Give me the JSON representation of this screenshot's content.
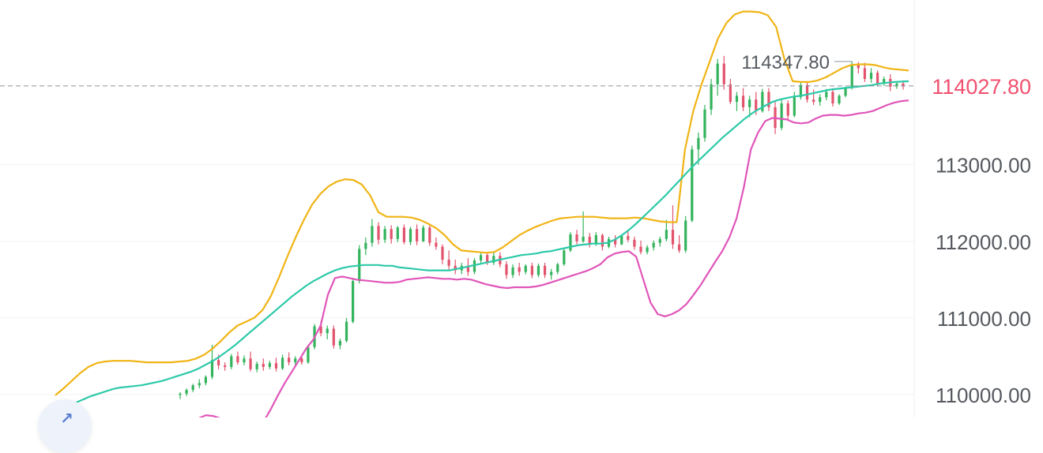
{
  "chart_data": {
    "type": "candlestick",
    "y_ticks": [
      "113000.00",
      "112000.00",
      "111000.00",
      "110000.00"
    ],
    "y_tick_values": [
      113000,
      112000,
      111000,
      110000
    ],
    "ylim": [
      109700,
      115150
    ],
    "current_price_label": "114027.80",
    "current_price": 114027.8,
    "high_label": "114347.80",
    "high_value": 114347.8,
    "candles": [
      [
        110000,
        110030,
        109940,
        110010
      ],
      [
        110010,
        110080,
        109980,
        110060
      ],
      [
        110060,
        110140,
        110030,
        110120
      ],
      [
        110120,
        110200,
        110080,
        110150
      ],
      [
        110150,
        110250,
        110120,
        110230
      ],
      [
        110230,
        110650,
        110200,
        110450
      ],
      [
        110450,
        110520,
        110330,
        110380
      ],
      [
        110380,
        110420,
        110310,
        110360
      ],
      [
        110360,
        110530,
        110330,
        110500
      ],
      [
        110500,
        110560,
        110390,
        110420
      ],
      [
        110420,
        110510,
        110380,
        110470
      ],
      [
        110470,
        110560,
        110300,
        110330
      ],
      [
        110330,
        110430,
        110290,
        110400
      ],
      [
        110400,
        110470,
        110310,
        110360
      ],
      [
        110360,
        110440,
        110330,
        110410
      ],
      [
        110410,
        110480,
        110300,
        110340
      ],
      [
        110340,
        110520,
        110320,
        110480
      ],
      [
        110480,
        110550,
        110380,
        110420
      ],
      [
        110420,
        110500,
        110370,
        110470
      ],
      [
        110470,
        110520,
        110390,
        110420
      ],
      [
        110420,
        110650,
        110400,
        110620
      ],
      [
        110620,
        110920,
        110590,
        110890
      ],
      [
        110890,
        110960,
        110760,
        110800
      ],
      [
        110800,
        110900,
        110720,
        110860
      ],
      [
        110860,
        110900,
        110600,
        110640
      ],
      [
        110640,
        110730,
        110590,
        110700
      ],
      [
        110700,
        111000,
        110680,
        110950
      ],
      [
        110950,
        111520,
        110930,
        111480
      ],
      [
        111480,
        111950,
        111450,
        111900
      ],
      [
        111900,
        112050,
        111820,
        111980
      ],
      [
        111980,
        112290,
        111930,
        112200
      ],
      [
        112200,
        112250,
        111960,
        112020
      ],
      [
        112020,
        112200,
        111980,
        112160
      ],
      [
        112160,
        112210,
        111970,
        112030
      ],
      [
        112030,
        112200,
        111990,
        112180
      ],
      [
        112180,
        112220,
        111960,
        111990
      ],
      [
        111990,
        112190,
        111950,
        112160
      ],
      [
        112160,
        112220,
        111950,
        112000
      ],
      [
        112000,
        112210,
        111990,
        112180
      ],
      [
        112180,
        112230,
        111940,
        111980
      ],
      [
        111980,
        112050,
        111890,
        111930
      ],
      [
        111930,
        111960,
        111700,
        111760
      ],
      [
        111760,
        111880,
        111620,
        111680
      ],
      [
        111680,
        111760,
        111570,
        111620
      ],
      [
        111620,
        111720,
        111570,
        111680
      ],
      [
        111680,
        111780,
        111550,
        111600
      ],
      [
        111600,
        111780,
        111570,
        111750
      ],
      [
        111750,
        111860,
        111700,
        111820
      ],
      [
        111820,
        111840,
        111690,
        111720
      ],
      [
        111720,
        111850,
        111690,
        111810
      ],
      [
        111810,
        111860,
        111660,
        111700
      ],
      [
        111700,
        111740,
        111510,
        111560
      ],
      [
        111560,
        111700,
        111520,
        111660
      ],
      [
        111660,
        111720,
        111550,
        111600
      ],
      [
        111600,
        111700,
        111570,
        111680
      ],
      [
        111680,
        111720,
        111520,
        111560
      ],
      [
        111560,
        111710,
        111530,
        111680
      ],
      [
        111680,
        111720,
        111520,
        111560
      ],
      [
        111560,
        111640,
        111500,
        111600
      ],
      [
        111600,
        111720,
        111570,
        111700
      ],
      [
        111700,
        111900,
        111680,
        111880
      ],
      [
        111880,
        112120,
        111860,
        112090
      ],
      [
        112090,
        112150,
        111960,
        112000
      ],
      [
        112000,
        112390,
        111980,
        112060
      ],
      [
        112060,
        112110,
        111920,
        111960
      ],
      [
        111960,
        112120,
        111940,
        112080
      ],
      [
        112080,
        112100,
        111880,
        111930
      ],
      [
        111930,
        112060,
        111910,
        112030
      ],
      [
        112030,
        112080,
        111920,
        111960
      ],
      [
        111960,
        112090,
        111950,
        112070
      ],
      [
        112070,
        112130,
        111990,
        112020
      ],
      [
        112020,
        112060,
        111890,
        111930
      ],
      [
        111930,
        112010,
        111830,
        111860
      ],
      [
        111860,
        111950,
        111830,
        111920
      ],
      [
        111920,
        112010,
        111880,
        111980
      ],
      [
        111980,
        112060,
        111930,
        112030
      ],
      [
        112030,
        112280,
        112000,
        112150
      ],
      [
        112150,
        112470,
        111900,
        111960
      ],
      [
        111960,
        112080,
        111850,
        111880
      ],
      [
        111880,
        112330,
        111850,
        112270
      ],
      [
        112270,
        113250,
        112250,
        113200
      ],
      [
        113200,
        113420,
        113000,
        113350
      ],
      [
        113350,
        113780,
        113300,
        113720
      ],
      [
        113720,
        114120,
        113650,
        114050
      ],
      [
        114050,
        114380,
        113900,
        114320
      ],
      [
        114320,
        114420,
        113980,
        114050
      ],
      [
        114050,
        114120,
        113790,
        113820
      ],
      [
        113820,
        113950,
        113700,
        113900
      ],
      [
        113900,
        114000,
        113700,
        113750
      ],
      [
        113750,
        113900,
        113620,
        113850
      ],
      [
        113850,
        113950,
        113650,
        113700
      ],
      [
        113700,
        113990,
        113680,
        113950
      ],
      [
        113950,
        114000,
        113700,
        113750
      ],
      [
        113750,
        113820,
        113400,
        113480
      ],
      [
        113480,
        113850,
        113450,
        113800
      ],
      [
        113800,
        113840,
        113580,
        113640
      ],
      [
        113640,
        113950,
        113620,
        113880
      ],
      [
        113880,
        114080,
        113850,
        114040
      ],
      [
        114040,
        114080,
        113810,
        113850
      ],
      [
        113850,
        113980,
        113780,
        113820
      ],
      [
        113820,
        113920,
        113770,
        113880
      ],
      [
        113880,
        113990,
        113840,
        113950
      ],
      [
        113950,
        114000,
        113760,
        113800
      ],
      [
        113800,
        113920,
        113780,
        113900
      ],
      [
        113900,
        114020,
        113880,
        114000
      ],
      [
        114000,
        114350,
        113980,
        114300
      ],
      [
        114300,
        114340,
        114190,
        114260
      ],
      [
        114260,
        114330,
        114080,
        114120
      ],
      [
        114120,
        114260,
        114070,
        114200
      ],
      [
        114200,
        114230,
        114020,
        114060
      ],
      [
        114060,
        114150,
        114030,
        114120
      ],
      [
        114120,
        114180,
        113960,
        114020
      ],
      [
        114020,
        114090,
        113990,
        114060
      ],
      [
        114060,
        114100,
        113980,
        114028
      ]
    ],
    "series": [
      {
        "name": "",
        "color": "#f0b415",
        "values": [
          109990,
          110080,
          110180,
          110280,
          110360,
          110410,
          110430,
          110440,
          110440,
          110440,
          110430,
          110420,
          110420,
          110420,
          110420,
          110430,
          110440,
          110470,
          110520,
          110600,
          110700,
          110810,
          110900,
          110950,
          111000,
          111100,
          111280,
          111530,
          111800,
          112050,
          112280,
          112480,
          112620,
          112720,
          112780,
          112810,
          112800,
          112740,
          112600,
          112380,
          112320,
          112320,
          112320,
          112310,
          112280,
          112230,
          112170,
          112080,
          111960,
          111880,
          111870,
          111860,
          111850,
          111860,
          111920,
          112000,
          112080,
          112140,
          112190,
          112230,
          112270,
          112300,
          112310,
          112320,
          112320,
          112320,
          112310,
          112300,
          112300,
          112300,
          112310,
          112300,
          112280,
          112260,
          112250,
          112250,
          113200,
          113700,
          114050,
          114350,
          114650,
          114850,
          114960,
          115000,
          115000,
          114990,
          114950,
          114800,
          114380,
          114090,
          114080,
          114080,
          114100,
          114140,
          114200,
          114260,
          114300,
          114310,
          114310,
          114300,
          114270,
          114250,
          114240,
          114230
        ]
      },
      {
        "name": "",
        "color": "#2cc9a9",
        "values": [
          109780,
          109820,
          109860,
          109900,
          109940,
          109980,
          110010,
          110040,
          110070,
          110090,
          110100,
          110110,
          110120,
          110140,
          110160,
          110180,
          110210,
          110240,
          110270,
          110300,
          110340,
          110390,
          110440,
          110500,
          110570,
          110640,
          110720,
          110800,
          110880,
          110960,
          111040,
          111120,
          111200,
          111280,
          111350,
          111420,
          111480,
          111530,
          111580,
          111620,
          111650,
          111670,
          111680,
          111690,
          111690,
          111690,
          111680,
          111680,
          111660,
          111650,
          111640,
          111630,
          111620,
          111620,
          111620,
          111620,
          111640,
          111660,
          111680,
          111700,
          111720,
          111740,
          111760,
          111780,
          111800,
          111820,
          111830,
          111840,
          111860,
          111870,
          111890,
          111910,
          111930,
          111950,
          111960,
          111970,
          111970,
          111980,
          112020,
          112080,
          112150,
          112230,
          112320,
          112410,
          112500,
          112590,
          112690,
          112790,
          112890,
          112990,
          113080,
          113170,
          113260,
          113350,
          113430,
          113510,
          113590,
          113660,
          113720,
          113770,
          113820,
          113850,
          113870,
          113890,
          113900,
          113920,
          113940,
          113960,
          113980,
          113990,
          114000,
          114010,
          114020,
          114030,
          114040,
          114060,
          114070,
          114080,
          114085,
          114090
        ]
      },
      {
        "name": "",
        "color": "#e055b9",
        "values": [
          109250,
          109240,
          109250,
          109260,
          109280,
          109300,
          109350,
          109400,
          109450,
          109480,
          109500,
          109510,
          109520,
          109520,
          109520,
          109530,
          109540,
          109560,
          109600,
          109650,
          109690,
          109730,
          109720,
          109690,
          109600,
          109540,
          109510,
          109510,
          109540,
          109640,
          109800,
          109980,
          110150,
          110300,
          110450,
          110600,
          110720,
          110900,
          111300,
          111520,
          111540,
          111520,
          111500,
          111490,
          111480,
          111470,
          111460,
          111460,
          111470,
          111500,
          111510,
          111520,
          111530,
          111520,
          111510,
          111510,
          111500,
          111510,
          111500,
          111470,
          111440,
          111420,
          111400,
          111390,
          111400,
          111400,
          111400,
          111410,
          111430,
          111460,
          111490,
          111520,
          111550,
          111580,
          111610,
          111650,
          111700,
          111790,
          111840,
          111860,
          111870,
          111800,
          111500,
          111200,
          111050,
          111020,
          111050,
          111100,
          111180,
          111300,
          111430,
          111580,
          111730,
          111870,
          112050,
          112300,
          112700,
          113200,
          113420,
          113570,
          113610,
          113600,
          113590,
          113550,
          113540,
          113550,
          113600,
          113640,
          113650,
          113650,
          113640,
          113650,
          113670,
          113680,
          113700,
          113740,
          113780,
          113810,
          113830,
          113840
        ]
      }
    ]
  }
}
